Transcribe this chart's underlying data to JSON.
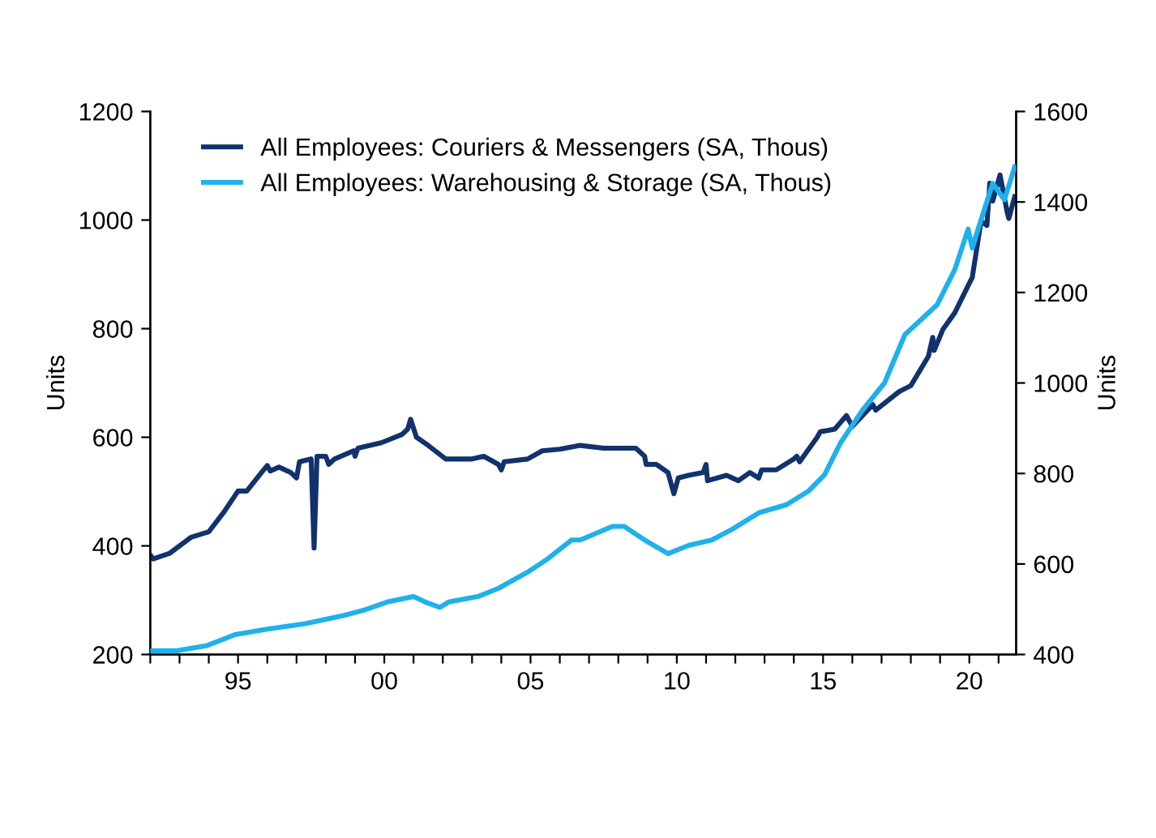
{
  "chart_data": {
    "type": "line",
    "ylabel": "Units",
    "y2label": "Units",
    "legend": "top left",
    "grid": false,
    "line_style": "solid",
    "marker": "none",
    "xlim": [
      1992,
      2021.6
    ],
    "xticks": [
      {
        "value": 1992,
        "label": null
      },
      {
        "value": 1993,
        "label": null
      },
      {
        "value": 1994,
        "label": null
      },
      {
        "value": 1995,
        "label": "95"
      },
      {
        "value": 1996,
        "label": null
      },
      {
        "value": 1997,
        "label": null
      },
      {
        "value": 1998,
        "label": null
      },
      {
        "value": 1999,
        "label": null
      },
      {
        "value": 2000,
        "label": "00"
      },
      {
        "value": 2001,
        "label": null
      },
      {
        "value": 2002,
        "label": null
      },
      {
        "value": 2003,
        "label": null
      },
      {
        "value": 2004,
        "label": null
      },
      {
        "value": 2005,
        "label": "05"
      },
      {
        "value": 2006,
        "label": null
      },
      {
        "value": 2007,
        "label": null
      },
      {
        "value": 2008,
        "label": null
      },
      {
        "value": 2009,
        "label": null
      },
      {
        "value": 2010,
        "label": "10"
      },
      {
        "value": 2011,
        "label": null
      },
      {
        "value": 2012,
        "label": null
      },
      {
        "value": 2013,
        "label": null
      },
      {
        "value": 2014,
        "label": null
      },
      {
        "value": 2015,
        "label": "15"
      },
      {
        "value": 2016,
        "label": null
      },
      {
        "value": 2017,
        "label": null
      },
      {
        "value": 2018,
        "label": null
      },
      {
        "value": 2019,
        "label": null
      },
      {
        "value": 2020,
        "label": "20"
      },
      {
        "value": 2021,
        "label": null
      }
    ],
    "ylim": [
      200,
      1200
    ],
    "yticks": [
      200,
      400,
      600,
      800,
      1000,
      1200
    ],
    "y2lim": [
      400,
      1600
    ],
    "y2ticks": [
      400,
      600,
      800,
      1000,
      1200,
      1400,
      1600
    ],
    "series": [
      {
        "name": "All Employees: Couriers & Messengers (SA, Thous)",
        "color": "#12326e",
        "x": [
          1992,
          1992.1,
          1992.65,
          1993.4,
          1994.0,
          1994.5,
          1995.0,
          1995.3,
          1995.8,
          1996.0,
          1996.1,
          1996.4,
          1996.8,
          1997.0,
          1997.1,
          1997.5,
          1997.6,
          1997.7,
          1998.0,
          1998.1,
          1998.3,
          1998.95,
          1999.0,
          1999.1,
          1999.9,
          2000.6,
          2000.8,
          2000.9,
          2001.1,
          2001.5,
          2002.1,
          2003.0,
          2003.4,
          2003.9,
          2004.0,
          2004.1,
          2004.9,
          2005.4,
          2006.0,
          2006.7,
          2007.5,
          2008.6,
          2008.9,
          2008.95,
          2009.3,
          2009.7,
          2009.9,
          2010.05,
          2010.4,
          2010.9,
          2011.0,
          2011.05,
          2011.7,
          2012.1,
          2012.5,
          2012.8,
          2012.9,
          2013.4,
          2014.0,
          2014.1,
          2014.2,
          2014.8,
          2014.9,
          2015.4,
          2015.8,
          2016.0,
          2016.7,
          2016.8,
          2017.6,
          2018.0,
          2018.6,
          2018.75,
          2018.8,
          2019.1,
          2019.5,
          2020.05,
          2020.1,
          2020.4,
          2020.6,
          2020.7,
          2020.8,
          2021.05,
          2021.3,
          2021.35,
          2021.55
        ],
        "values": [
          383,
          376,
          386,
          416,
          426,
          461,
          501,
          501,
          535,
          548,
          538,
          545,
          535,
          525,
          555,
          560,
          396,
          565,
          565,
          550,
          560,
          575,
          565,
          580,
          590,
          605,
          615,
          633,
          600,
          585,
          560,
          560,
          565,
          550,
          540,
          555,
          560,
          575,
          578,
          585,
          580,
          580,
          565,
          550,
          550,
          535,
          496,
          525,
          530,
          535,
          550,
          520,
          530,
          520,
          535,
          525,
          540,
          540,
          560,
          565,
          555,
          600,
          610,
          615,
          640,
          620,
          660,
          650,
          684,
          695,
          749,
          784,
          760,
          799,
          829,
          889,
          894,
          998,
          990,
          1068,
          1035,
          1083,
          1013,
          1003,
          1043
        ]
      },
      {
        "name": "All Employees: Warehousing & Storage (SA, Thous)",
        "color": "#1fb1ec",
        "axis": "y2",
        "x": [
          1992,
          1992.9,
          1993.95,
          1994.9,
          1996.0,
          1997.3,
          1998.6,
          1999.3,
          2000.1,
          2001.0,
          2001.4,
          2001.9,
          2002.2,
          2003.2,
          2003.9,
          2004.9,
          2005.6,
          2006.4,
          2006.7,
          2007.8,
          2008.2,
          2008.9,
          2009.7,
          2010.4,
          2011.2,
          2011.9,
          2012.8,
          2013.75,
          2014.5,
          2015.05,
          2015.6,
          2016.35,
          2017.1,
          2017.8,
          2018.4,
          2018.9,
          2019.5,
          2019.96,
          2020.1,
          2020.3,
          2020.8,
          2021.2,
          2021.55
        ],
        "values": [
          408,
          408,
          420,
          444,
          456,
          468,
          486,
          498,
          516,
          528,
          516,
          504,
          516,
          528,
          546,
          582,
          612,
          653,
          653,
          683,
          683,
          653,
          623,
          641,
          653,
          677,
          713,
          731,
          761,
          797,
          868,
          940,
          1000,
          1107,
          1143,
          1173,
          1250,
          1340,
          1298,
          1340,
          1441,
          1405,
          1477
        ]
      }
    ]
  }
}
